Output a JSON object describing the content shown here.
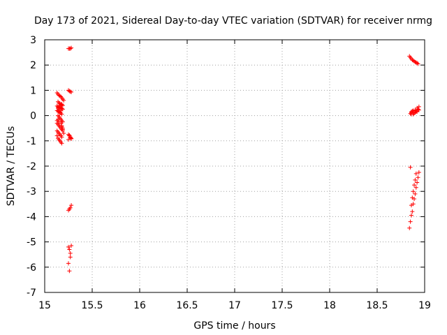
{
  "chart_data": {
    "type": "scatter",
    "title": "Day 173 of 2021, Sidereal Day-to-day VTEC variation (SDTVAR) for receiver nrmg",
    "xlabel": "GPS time / hours",
    "ylabel": "SDTVAR / TECUs",
    "xlim": [
      15,
      19
    ],
    "ylim": [
      -7,
      3
    ],
    "xticks": [
      "15",
      "15.5",
      "16",
      "16.5",
      "17",
      "17.5",
      "18",
      "18.5",
      "19"
    ],
    "xtick_values": [
      15,
      15.5,
      16,
      16.5,
      17,
      17.5,
      18,
      18.5,
      19
    ],
    "yticks": [
      "3",
      "2",
      "1",
      "0",
      "-1",
      "-2",
      "-3",
      "-4",
      "-5",
      "-6",
      "-7"
    ],
    "ytick_values": [
      3,
      2,
      1,
      0,
      -1,
      -2,
      -3,
      -4,
      -5,
      -6,
      -7
    ],
    "grid": true,
    "marker": "plus",
    "color": "#ff0000",
    "series": [
      {
        "x": [
          15.13,
          15.14,
          15.15,
          15.16,
          15.17,
          15.18,
          15.19,
          15.2,
          15.14,
          15.15,
          15.16,
          15.17,
          15.18,
          15.19,
          15.13,
          15.14,
          15.15,
          15.16,
          15.17,
          15.18,
          15.19,
          15.13,
          15.14,
          15.15,
          15.16,
          15.17,
          15.18,
          15.14,
          15.15,
          15.16,
          15.17,
          15.18,
          15.19,
          15.13,
          15.14,
          15.15,
          15.16,
          15.17,
          15.18,
          15.13,
          15.14,
          15.15,
          15.16,
          15.17,
          15.18,
          15.14,
          15.15,
          15.16,
          15.17,
          15.18,
          15.19,
          15.13,
          15.14,
          15.15,
          15.16,
          15.17,
          15.18,
          15.14,
          15.15,
          15.16,
          15.17,
          15.18,
          15.19,
          15.2,
          15.13,
          15.14,
          15.15,
          15.16,
          15.17,
          15.18,
          15.19
        ],
        "y": [
          0.9,
          0.85,
          0.8,
          0.78,
          0.75,
          0.7,
          0.65,
          0.6,
          0.55,
          0.5,
          0.48,
          0.45,
          0.42,
          0.4,
          0.38,
          0.35,
          0.33,
          0.32,
          0.3,
          0.28,
          0.25,
          0.2,
          0.18,
          0.15,
          0.12,
          0.1,
          0.05,
          0.0,
          -0.05,
          -0.1,
          -0.15,
          -0.2,
          -0.25,
          -0.3,
          -0.35,
          -0.4,
          -0.45,
          -0.5,
          -0.55,
          -0.6,
          -0.65,
          -0.7,
          -0.75,
          -0.8,
          -0.85,
          -0.9,
          -0.95,
          -1.0,
          -1.05,
          -1.1,
          -0.5,
          -0.2,
          0.3,
          0.25,
          0.35,
          0.4,
          0.45,
          0.3,
          0.2,
          0.15,
          -0.3,
          -0.4,
          -0.6,
          -0.7,
          -0.8,
          -0.15,
          -0.25,
          0.1,
          0.2,
          -0.45,
          -0.55
        ]
      },
      {
        "x": [
          15.25,
          15.26,
          15.27,
          15.28,
          15.25,
          15.26,
          15.27,
          15.28,
          15.25,
          15.26,
          15.27,
          15.28,
          15.25,
          15.26,
          15.27,
          15.28,
          15.25,
          15.26,
          15.27,
          15.28,
          15.25,
          15.26,
          15.27,
          15.28,
          15.25,
          15.26,
          15.27
        ],
        "y": [
          2.65,
          2.65,
          2.65,
          2.68,
          1.0,
          0.97,
          0.95,
          0.93,
          -0.75,
          -0.8,
          -0.85,
          -0.9,
          -0.95,
          -0.78,
          -0.88,
          -0.92,
          -3.75,
          -3.7,
          -3.65,
          -3.55,
          -5.2,
          -5.3,
          -5.45,
          -5.15,
          -5.85,
          -6.15,
          -5.6
        ]
      },
      {
        "x": [
          18.84,
          18.85,
          18.86,
          18.87,
          18.88,
          18.89,
          18.9,
          18.91,
          18.92,
          18.93,
          18.86,
          18.88,
          18.9,
          18.92,
          18.85,
          18.86,
          18.87,
          18.88,
          18.89,
          18.9,
          18.91,
          18.92,
          18.93,
          18.94,
          18.86,
          18.88,
          18.9,
          18.92,
          18.94,
          18.84,
          18.85,
          18.86,
          18.87,
          18.88,
          18.89,
          18.9,
          18.91,
          18.92,
          18.93,
          18.94,
          18.85,
          18.86,
          18.87,
          18.88,
          18.89,
          18.9,
          18.91
        ],
        "y": [
          2.35,
          2.3,
          2.25,
          2.2,
          2.18,
          2.15,
          2.12,
          2.1,
          2.08,
          2.05,
          0.05,
          0.1,
          0.12,
          0.15,
          0.08,
          0.15,
          0.18,
          0.2,
          0.1,
          0.22,
          0.15,
          0.18,
          0.25,
          0.35,
          0.12,
          0.05,
          0.2,
          0.3,
          0.22,
          -4.45,
          -4.2,
          -3.95,
          -3.8,
          -3.5,
          -3.3,
          -3.1,
          -2.85,
          -2.65,
          -2.45,
          -2.25,
          -2.05,
          -3.55,
          -3.25,
          -3.0,
          -2.75,
          -2.55,
          -2.3
        ]
      }
    ]
  }
}
